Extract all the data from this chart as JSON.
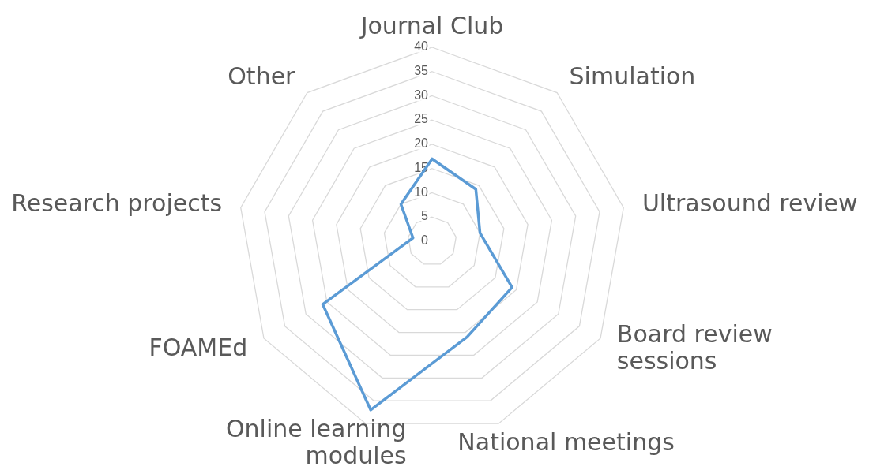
{
  "chart_data": {
    "type": "radar",
    "categories": [
      "Journal Club",
      "Simulation",
      "Ultrasound review",
      "Board review\nsessions",
      "National meetings",
      "Online learning\nmodules",
      "FOAMEd",
      "Research projects",
      "Other"
    ],
    "series": [
      {
        "color": "#5b9bd5",
        "values": [
          17,
          14,
          10,
          19,
          21,
          37,
          26,
          4,
          10
        ]
      }
    ],
    "ylim": [
      0,
      40
    ],
    "yticks": [
      0,
      5,
      10,
      15,
      20,
      25,
      30,
      35,
      40
    ],
    "grid": true,
    "marker": "none",
    "line_style": "solid"
  }
}
